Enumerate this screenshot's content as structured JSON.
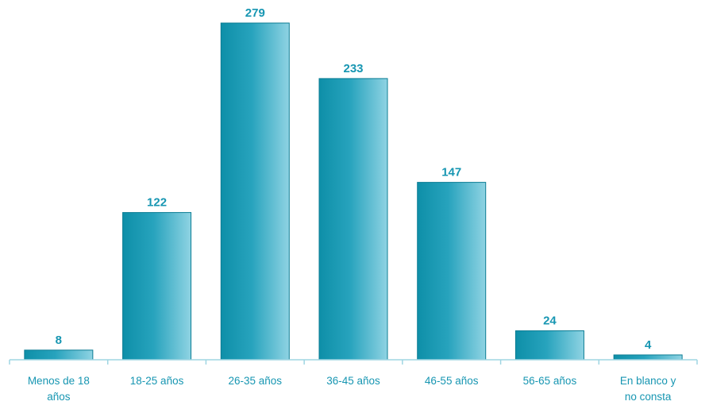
{
  "chart_data": {
    "type": "bar",
    "categories": [
      [
        "Menos de 18",
        "años"
      ],
      [
        "18-25 años"
      ],
      [
        "26-35 años"
      ],
      [
        "36-45 años"
      ],
      [
        "46-55 años"
      ],
      [
        "56-65 años"
      ],
      [
        "En blanco y",
        "no consta"
      ]
    ],
    "values": [
      8,
      122,
      279,
      233,
      147,
      24,
      4
    ],
    "data_labels": [
      "8",
      "122",
      "279",
      "233",
      "147",
      "24",
      "4"
    ],
    "title": "",
    "xlabel": "",
    "ylabel": "",
    "ylim": [
      0,
      279
    ],
    "grid": false,
    "legend": "none",
    "colors": {
      "bar_dark": "#0e8fa8",
      "bar_mid": "#27a3bd",
      "bar_light": "#8fd3e3",
      "bar_edge": "#0b7c93",
      "label": "#1796b2",
      "axis": "#9fd5e2"
    }
  }
}
